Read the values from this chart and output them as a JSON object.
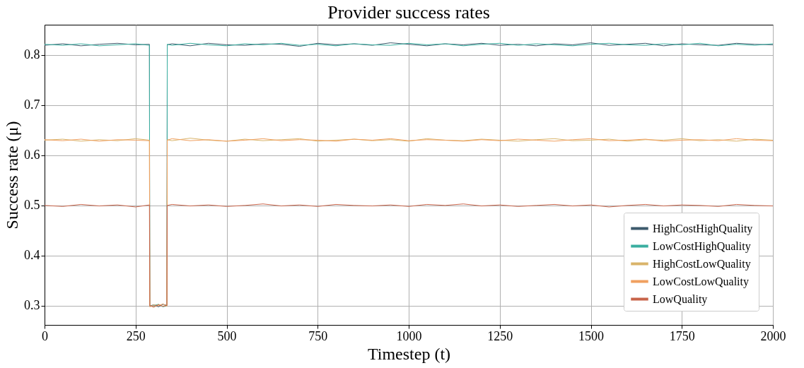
{
  "chart_data": {
    "type": "line",
    "title": "Provider success rates",
    "xlabel": "Timestep (t)",
    "ylabel": "Success rate (μ)",
    "x": [
      0,
      50,
      100,
      150,
      200,
      250,
      288,
      289,
      300,
      313,
      325,
      336,
      337,
      350,
      400,
      450,
      500,
      550,
      600,
      650,
      700,
      750,
      800,
      850,
      900,
      950,
      1000,
      1050,
      1100,
      1150,
      1200,
      1250,
      1300,
      1350,
      1400,
      1450,
      1500,
      1550,
      1600,
      1650,
      1700,
      1750,
      1800,
      1850,
      1900,
      1950,
      2000
    ],
    "xlim": [
      0,
      2000
    ],
    "xticks": [
      0,
      250,
      500,
      750,
      1000,
      1250,
      1500,
      1750,
      2000
    ],
    "ylim": [
      0.262,
      0.86
    ],
    "yticks": [
      0.3,
      0.4,
      0.5,
      0.6,
      0.7,
      0.8
    ],
    "grid": true,
    "legend": "bottom right",
    "line_style": "solid",
    "marker": "none",
    "series": [
      {
        "name": "HighCostHighQuality",
        "color": "#3d5a6c",
        "values": [
          0.819,
          0.822,
          0.818,
          0.821,
          0.823,
          0.82,
          0.821,
          0.3,
          0.302,
          0.298,
          0.303,
          0.301,
          0.82,
          0.822,
          0.818,
          0.823,
          0.82,
          0.819,
          0.822,
          0.821,
          0.817,
          0.823,
          0.82,
          0.822,
          0.819,
          0.824,
          0.821,
          0.818,
          0.822,
          0.82,
          0.823,
          0.819,
          0.821,
          0.818,
          0.822,
          0.82,
          0.824,
          0.819,
          0.821,
          0.823,
          0.818,
          0.822,
          0.82,
          0.819,
          0.823,
          0.821,
          0.82
        ]
      },
      {
        "name": "LowCostHighQuality",
        "color": "#3aafa0",
        "values": [
          0.821,
          0.819,
          0.822,
          0.818,
          0.82,
          0.822,
          0.819,
          0.299,
          0.301,
          0.303,
          0.298,
          0.3,
          0.821,
          0.819,
          0.823,
          0.82,
          0.818,
          0.822,
          0.82,
          0.823,
          0.819,
          0.821,
          0.818,
          0.822,
          0.82,
          0.819,
          0.823,
          0.82,
          0.822,
          0.818,
          0.821,
          0.823,
          0.819,
          0.822,
          0.82,
          0.818,
          0.821,
          0.823,
          0.82,
          0.819,
          0.822,
          0.82,
          0.823,
          0.818,
          0.821,
          0.819,
          0.822
        ]
      },
      {
        "name": "HighCostLowQuality",
        "color": "#d9b46a",
        "values": [
          0.63,
          0.632,
          0.628,
          0.631,
          0.629,
          0.633,
          0.63,
          0.301,
          0.297,
          0.303,
          0.299,
          0.302,
          0.631,
          0.629,
          0.634,
          0.63,
          0.628,
          0.632,
          0.629,
          0.631,
          0.633,
          0.628,
          0.63,
          0.632,
          0.629,
          0.631,
          0.628,
          0.633,
          0.63,
          0.629,
          0.632,
          0.63,
          0.628,
          0.631,
          0.633,
          0.629,
          0.63,
          0.632,
          0.628,
          0.631,
          0.63,
          0.633,
          0.629,
          0.631,
          0.628,
          0.632,
          0.63
        ]
      },
      {
        "name": "LowCostLowQuality",
        "color": "#f0a060",
        "values": [
          0.631,
          0.629,
          0.632,
          0.628,
          0.631,
          0.63,
          0.629,
          0.298,
          0.302,
          0.3,
          0.304,
          0.299,
          0.63,
          0.633,
          0.629,
          0.631,
          0.628,
          0.63,
          0.633,
          0.629,
          0.631,
          0.63,
          0.628,
          0.632,
          0.63,
          0.633,
          0.629,
          0.631,
          0.63,
          0.628,
          0.631,
          0.629,
          0.632,
          0.63,
          0.628,
          0.631,
          0.633,
          0.629,
          0.63,
          0.632,
          0.628,
          0.63,
          0.631,
          0.629,
          0.633,
          0.63,
          0.629
        ]
      },
      {
        "name": "LowQuality",
        "color": "#c8644a",
        "values": [
          0.5,
          0.498,
          0.502,
          0.499,
          0.501,
          0.497,
          0.501,
          0.3,
          0.298,
          0.302,
          0.299,
          0.301,
          0.5,
          0.502,
          0.499,
          0.501,
          0.498,
          0.5,
          0.503,
          0.499,
          0.501,
          0.498,
          0.502,
          0.5,
          0.499,
          0.501,
          0.498,
          0.502,
          0.5,
          0.503,
          0.499,
          0.501,
          0.498,
          0.5,
          0.502,
          0.499,
          0.501,
          0.497,
          0.5,
          0.502,
          0.499,
          0.501,
          0.5,
          0.498,
          0.502,
          0.5,
          0.499
        ]
      }
    ]
  }
}
